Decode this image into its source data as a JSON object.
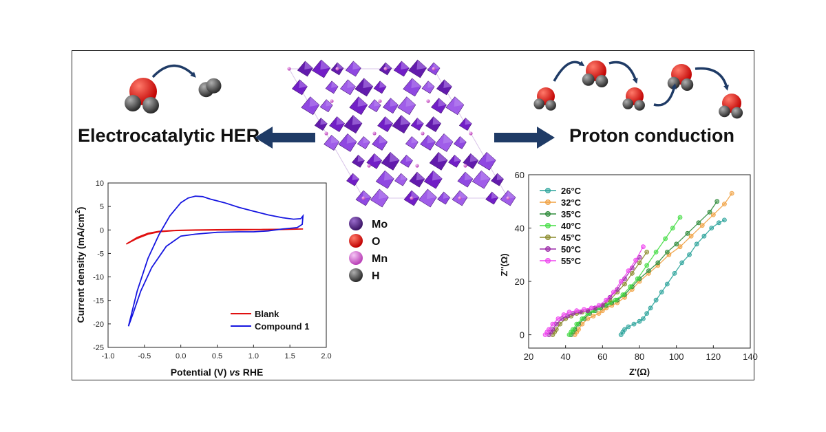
{
  "titles": {
    "left": "Electrocatalytic HER",
    "right": "Proton conduction"
  },
  "legend_atoms": [
    {
      "label": "Mo",
      "color": "#5b2a86"
    },
    {
      "label": "O",
      "color": "#e0140e"
    },
    {
      "label": "Mn",
      "color": "#d76fd6"
    },
    {
      "label": "H",
      "color": "#555555"
    }
  ],
  "colors": {
    "polyhedra": "#7a1fd1",
    "oxygen": "#e31010",
    "hydrogen": "#555555",
    "arrow": "#1f3b66"
  },
  "chart_data": [
    {
      "type": "line",
      "xlabel": "Potential (V) vs RHE",
      "xlabel_main": "Potential (V) ",
      "xlabel_italic": "vs",
      "xlabel_tail": " RHE",
      "ylabel": "Current density (mA/cm2)",
      "ylabel_main": "Current density (mA/cm",
      "ylabel_sup": "2",
      "ylabel_tail": ")",
      "xlim": [
        -1.0,
        2.0
      ],
      "ylim": [
        -25,
        10
      ],
      "xticks": [
        -1.0,
        -0.5,
        0.0,
        0.5,
        1.0,
        1.5,
        2.0
      ],
      "xtick_labels": [
        "-1.0",
        "-0.5",
        "0.0",
        "0.5",
        "1.0",
        "1.5",
        "2.0"
      ],
      "yticks": [
        -25,
        -20,
        -15,
        -10,
        -5,
        0,
        5,
        10
      ],
      "ytick_labels": [
        "-25",
        "-20",
        "-15",
        "-10",
        "-5",
        "0",
        "5",
        "10"
      ],
      "legend_position": "bottom-right",
      "series": [
        {
          "name": "Blank",
          "color": "#e01010",
          "x": [
            -0.75,
            -0.6,
            -0.45,
            -0.3,
            -0.1,
            0.2,
            0.5,
            0.8,
            1.1,
            1.4,
            1.68,
            1.68,
            1.4,
            1.1,
            0.8,
            0.5,
            0.2,
            -0.1,
            -0.3,
            -0.45,
            -0.6,
            -0.75
          ],
          "y": [
            -3.0,
            -1.6,
            -0.7,
            -0.3,
            -0.1,
            0.0,
            0.05,
            0.1,
            0.1,
            0.15,
            0.2,
            0.2,
            0.1,
            0.05,
            0.0,
            0.0,
            -0.05,
            -0.15,
            -0.4,
            -0.9,
            -1.8,
            -3.0
          ]
        },
        {
          "name": "Compound 1",
          "color": "#1515e0",
          "x": [
            -0.72,
            -0.6,
            -0.45,
            -0.3,
            -0.15,
            0.0,
            0.1,
            0.2,
            0.3,
            0.4,
            0.6,
            0.8,
            1.0,
            1.2,
            1.4,
            1.55,
            1.65,
            1.68,
            1.67,
            1.6,
            1.4,
            1.2,
            1.0,
            0.8,
            0.5,
            0.2,
            0.0,
            -0.2,
            -0.4,
            -0.55,
            -0.65,
            -0.72
          ],
          "y": [
            -20.5,
            -13.0,
            -6.0,
            -1.0,
            3.0,
            5.8,
            6.8,
            7.2,
            7.1,
            6.6,
            5.8,
            4.8,
            4.0,
            3.2,
            2.6,
            2.3,
            2.4,
            3.0,
            1.2,
            0.5,
            0.2,
            -0.2,
            -0.4,
            -0.4,
            -0.5,
            -0.9,
            -1.3,
            -3.5,
            -8.0,
            -13.0,
            -17.5,
            -20.5
          ]
        }
      ]
    },
    {
      "type": "scatter",
      "xlabel": "Z'(Ω)",
      "ylabel": "Z''(Ω)",
      "xlim": [
        20,
        140
      ],
      "ylim": [
        -5,
        60
      ],
      "xticks": [
        20,
        40,
        60,
        80,
        100,
        120,
        140
      ],
      "xtick_labels": [
        "20",
        "40",
        "60",
        "80",
        "100",
        "120",
        "140"
      ],
      "yticks": [
        0,
        20,
        40,
        60
      ],
      "ytick_labels": [
        "0",
        "20",
        "40",
        "60"
      ],
      "legend_position": "top-left",
      "series": [
        {
          "name": "26°C",
          "color": "#2aa39a",
          "x": [
            70,
            71,
            72,
            74,
            77,
            80,
            82,
            84,
            86,
            89,
            92,
            95,
            99,
            103,
            107,
            111,
            115,
            119,
            123,
            126
          ],
          "y": [
            0,
            1,
            2,
            3,
            4,
            5,
            6,
            8,
            10,
            13,
            16,
            19,
            23,
            27,
            30,
            34,
            37,
            40,
            42,
            43
          ]
        },
        {
          "name": "32°C",
          "color": "#f0a040",
          "x": [
            45,
            46,
            47,
            49,
            52,
            55,
            58,
            60,
            62,
            65,
            68,
            72,
            76,
            80,
            85,
            90,
            96,
            102,
            108,
            114,
            120,
            126,
            130
          ],
          "y": [
            0,
            1,
            2,
            4,
            6,
            7,
            8,
            9,
            10,
            11,
            12,
            14,
            17,
            20,
            23,
            26,
            30,
            33,
            37,
            41,
            45,
            49,
            53
          ]
        },
        {
          "name": "35°C",
          "color": "#2e8b3a",
          "x": [
            43,
            44,
            45,
            47,
            50,
            53,
            56,
            59,
            62,
            65,
            68,
            72,
            76,
            80,
            85,
            90,
            95,
            100,
            106,
            112,
            118,
            122
          ],
          "y": [
            0,
            1,
            2,
            4,
            6,
            8,
            9,
            10,
            11,
            12,
            13,
            15,
            18,
            21,
            24,
            27,
            31,
            34,
            38,
            42,
            46,
            50
          ]
        },
        {
          "name": "40°C",
          "color": "#44dd44",
          "x": [
            42,
            43,
            44,
            46,
            49,
            52,
            55,
            58,
            61,
            64,
            67,
            71,
            75,
            79,
            84,
            89,
            94,
            98,
            102
          ],
          "y": [
            0,
            1,
            2,
            4,
            6,
            8,
            9,
            10,
            11,
            12,
            13,
            15,
            18,
            21,
            26,
            31,
            36,
            40,
            44
          ]
        },
        {
          "name": "45°C",
          "color": "#8a8a2a",
          "x": [
            33,
            34,
            35,
            37,
            40,
            43,
            46,
            49,
            52,
            56,
            60,
            64,
            68,
            72,
            76,
            80,
            84
          ],
          "y": [
            0,
            1,
            2,
            4,
            6,
            7,
            8,
            8.5,
            9,
            10,
            11,
            13,
            16,
            19,
            23,
            27,
            31
          ]
        },
        {
          "name": "50°C",
          "color": "#9b2aa8",
          "x": [
            31,
            32,
            33,
            35,
            38,
            41,
            44,
            48,
            52,
            56,
            60,
            64,
            68,
            72,
            76,
            80
          ],
          "y": [
            0,
            1,
            2,
            4,
            6,
            7,
            8,
            8.5,
            9,
            10,
            11,
            14,
            17,
            21,
            25,
            29
          ]
        },
        {
          "name": "55°C",
          "color": "#ee44ee",
          "x": [
            29,
            30,
            31,
            33,
            36,
            39,
            42,
            46,
            50,
            54,
            58,
            62,
            66,
            70,
            74,
            78,
            82
          ],
          "y": [
            0,
            1,
            2,
            4,
            6,
            7.5,
            8.5,
            9,
            9.5,
            10,
            11,
            13,
            16,
            20,
            24,
            28,
            33
          ]
        }
      ]
    }
  ]
}
